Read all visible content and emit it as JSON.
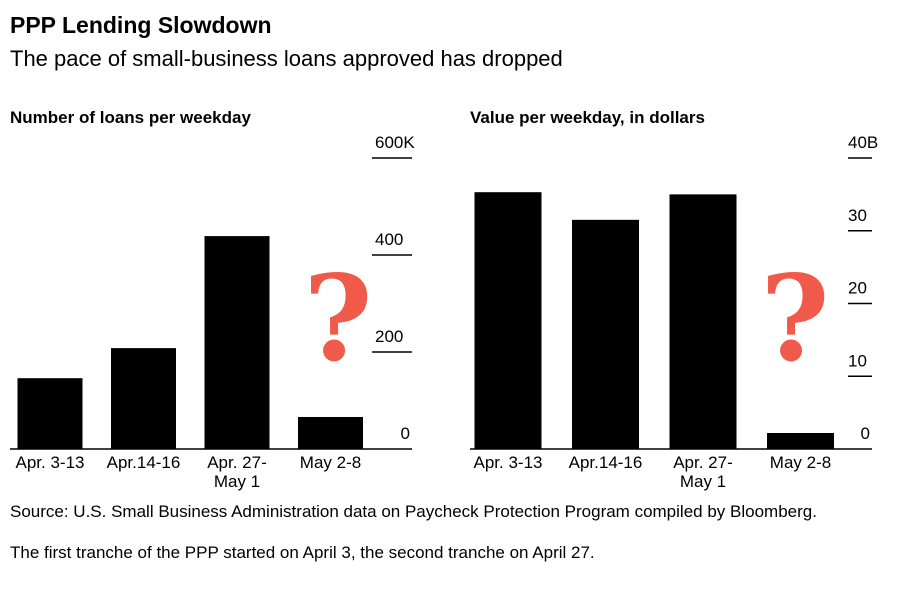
{
  "title": "PPP Lending Slowdown",
  "subtitle": "The pace of small-business loans approved has dropped",
  "source": "Source: U.S. Small Business Administration data on Paycheck Protection Program compiled by Bloomberg.",
  "note": "The first tranche of the PPP started on April 3, the second tranche on April 27.",
  "chart_data": [
    {
      "type": "bar",
      "title": "Number of loans per weekday",
      "categories": [
        "Apr. 3-13",
        "Apr.14-16",
        "Apr. 27-May 1",
        "May 2-8"
      ],
      "values": [
        146,
        208,
        439,
        66
      ],
      "color": "#000000",
      "ylim": [
        0,
        600
      ],
      "yticks": [
        0,
        200,
        400,
        {
          "value": 600,
          "label": "600K"
        }
      ],
      "annotation": "?",
      "annotation_color": "#f05a4a"
    },
    {
      "type": "bar",
      "title": "Value per weekday, in dollars",
      "categories": [
        "Apr. 3-13",
        "Apr.14-16",
        "Apr. 27-May 1",
        "May 2-8"
      ],
      "values": [
        35.3,
        31.5,
        35.0,
        2.2
      ],
      "color": "#000000",
      "ylim": [
        0,
        40
      ],
      "yticks": [
        0,
        10,
        20,
        30,
        {
          "value": 40,
          "label": "40B"
        }
      ],
      "annotation": "?",
      "annotation_color": "#f05a4a"
    }
  ]
}
